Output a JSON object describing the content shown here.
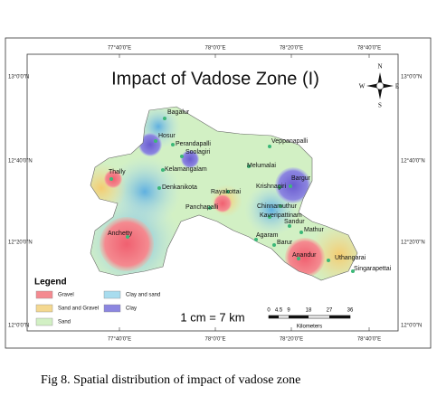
{
  "map": {
    "title": "Impact of Vadose Zone (I)",
    "top_labels": [
      "77°40'0\"E",
      "78°0'0\"E",
      "78°20'0\"E",
      "78°40'0\"E"
    ],
    "bottom_labels": [
      "77°40'0\"E",
      "78°0'0\"E",
      "78°20'0\"E",
      "78°40'0\"E"
    ],
    "left_labels": [
      "13°0'0\"N",
      "12°40'0\"N",
      "12°20'0\"N",
      "12°0'0\"N"
    ],
    "right_labels": [
      "13°0'0\"N",
      "12°40'0\"N",
      "12°20'0\"N",
      "12°0'0\"N"
    ],
    "compass": {
      "n": "N",
      "s": "S",
      "e": "E",
      "w": "W"
    },
    "places": [
      "Bagalur",
      "Hosur",
      "Perandapalli",
      "Soolagiri",
      "Veppanapalli",
      "Thally",
      "Kelamangalam",
      "Melumalai",
      "Bargur",
      "Denkanikota",
      "Krishnagiri",
      "Rayakottai",
      "Panchapalli",
      "Chinnamuthur",
      "Kaveripattinam",
      "Sandur",
      "Mathur",
      "Agaram",
      "Barur",
      "Anchetty",
      "Anandur",
      "Uthangarai",
      "Singarapettai"
    ],
    "legend": {
      "title": "Legend",
      "items": [
        "Gravel",
        "Clay and sand",
        "Sand and Gravel",
        "Clay",
        "Sand"
      ]
    },
    "scale": {
      "text": "1 cm = 7 km",
      "ticks": [
        "0",
        "4.5",
        "9",
        "18",
        "27",
        "36"
      ],
      "unit": "Kilometers"
    }
  },
  "caption": "Fig 8. Spatial distribution of impact of vadose zone"
}
